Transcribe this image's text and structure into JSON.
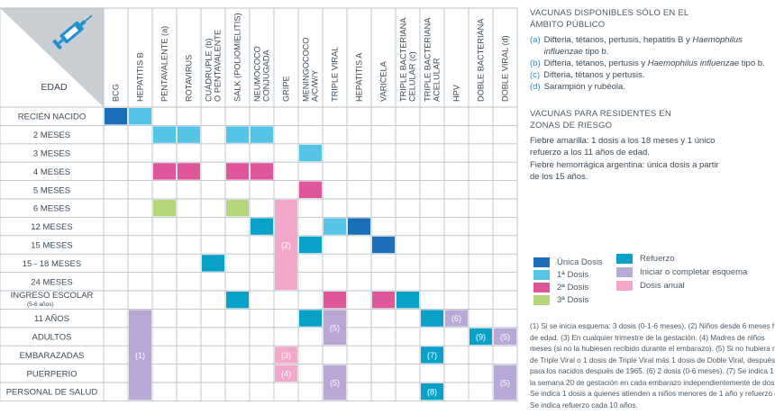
{
  "table": {
    "header_label": "EDAD",
    "columns": [
      "BCG",
      "HEPATITIS B",
      "PENTAVALENTE (a)",
      "ROTAVIRUS",
      "CUÁDRUPLE (b)\nO PENTAVALENTE",
      "SALK (POLIOMIELITIS)",
      "NEUMOCOCO\nCONJUGADA",
      "GRIPE",
      "MENINGOCOCO\nA/C/W/Y",
      "TRIPLE VIRAL",
      "HEPATITIS A",
      "VARICELA",
      "TRIPLE BACTERIANA\nCELULAR (c)",
      "TRIPLE BACTERIANA\nACELULAR",
      "HPV",
      "DOBLE BACTERIANA",
      "DOBLE VIRAL (d)"
    ],
    "rows": [
      "RECIÉN NACIDO",
      "2 MESES",
      "3 MESES",
      "4 MESES",
      "5 MESES",
      "6 MESES",
      "12 MESES",
      "15 MESES",
      "15 - 18 MESES",
      "24 MESES",
      "INGRESO ESCOLAR\n(5-6 años)",
      "11 AÑOS",
      "ADULTOS",
      "EMBARAZADAS",
      "PUERPERIO",
      "PERSONAL DE SALUD"
    ],
    "cells": [
      {
        "r": 0,
        "c": 0,
        "t": "unica"
      },
      {
        "r": 0,
        "c": 1,
        "t": "dosis1"
      },
      {
        "r": 1,
        "c": 2,
        "t": "dosis1"
      },
      {
        "r": 1,
        "c": 3,
        "t": "dosis1"
      },
      {
        "r": 1,
        "c": 5,
        "t": "dosis1"
      },
      {
        "r": 1,
        "c": 6,
        "t": "dosis1"
      },
      {
        "r": 2,
        "c": 8,
        "t": "dosis1"
      },
      {
        "r": 3,
        "c": 2,
        "t": "dosis2"
      },
      {
        "r": 3,
        "c": 3,
        "t": "dosis2"
      },
      {
        "r": 3,
        "c": 5,
        "t": "dosis2"
      },
      {
        "r": 3,
        "c": 6,
        "t": "dosis2"
      },
      {
        "r": 4,
        "c": 8,
        "t": "dosis2"
      },
      {
        "r": 5,
        "c": 2,
        "t": "dosis3"
      },
      {
        "r": 5,
        "c": 5,
        "t": "dosis3"
      },
      {
        "r": 6,
        "c": 6,
        "t": "refuerzo"
      },
      {
        "r": 6,
        "c": 9,
        "t": "dosis1"
      },
      {
        "r": 6,
        "c": 10,
        "t": "unica"
      },
      {
        "r": 7,
        "c": 8,
        "t": "refuerzo"
      },
      {
        "r": 7,
        "c": 11,
        "t": "unica"
      },
      {
        "r": 8,
        "c": 4,
        "t": "refuerzo"
      },
      {
        "r": 10,
        "c": 5,
        "t": "refuerzo"
      },
      {
        "r": 10,
        "c": 9,
        "t": "dosis2"
      },
      {
        "r": 10,
        "c": 11,
        "t": "dosis2"
      },
      {
        "r": 10,
        "c": 12,
        "t": "refuerzo"
      },
      {
        "r": 11,
        "c": 8,
        "t": "refuerzo"
      },
      {
        "r": 11,
        "c": 13,
        "t": "refuerzo"
      },
      {
        "r": 12,
        "c": 16,
        "t": "iniciar",
        "label": "(5)"
      },
      {
        "r": 13,
        "c": 13,
        "t": "refuerzo",
        "label": "(7)"
      },
      {
        "r": 15,
        "c": 13,
        "t": "refuerzo",
        "label": "(8)"
      }
    ],
    "spans": [
      {
        "r": 5,
        "c": 7,
        "rs": 5,
        "t": "anual",
        "label": "(2)"
      },
      {
        "r": 11,
        "c": 1,
        "rs": 5,
        "t": "iniciar",
        "label": "(1)"
      },
      {
        "r": 11,
        "c": 9,
        "rs": 2,
        "t": "iniciar",
        "label": "(5)"
      },
      {
        "r": 11,
        "c": 14,
        "rs": 1,
        "t": "iniciar",
        "label": "(6)"
      },
      {
        "r": 12,
        "c": 15,
        "rs": 1,
        "t": "refuerzo",
        "label": "(9)"
      },
      {
        "r": 13,
        "c": 7,
        "rs": 1,
        "t": "anual",
        "label": "(3)"
      },
      {
        "r": 14,
        "c": 7,
        "rs": 1,
        "t": "anual",
        "label": "(4)"
      },
      {
        "r": 14,
        "c": 9,
        "rs": 2,
        "t": "iniciar",
        "label": "(5)"
      },
      {
        "r": 14,
        "c": 16,
        "rs": 2,
        "t": "iniciar",
        "label": "(5)"
      }
    ]
  },
  "colors": {
    "unica": "#1b6fb8",
    "dosis1": "#55c4e6",
    "dosis2": "#e0569a",
    "dosis3": "#b5d67a",
    "refuerzo": "#0aa1c8",
    "iniciar": "#b8a8d6",
    "anual": "#f3a7c9",
    "rowhead": "#ffffff",
    "rowhead_border": "#b8c2ca",
    "header_bg": "#ffffff",
    "corner_shade": "#c9ced3",
    "icon": "#1e8fd5"
  },
  "header_icon": "syringe-icon",
  "right": {
    "public_title": "VACUNAS DISPONIBLES SÓLO EN EL\nÁMBITO PÚBLICO",
    "public_items": [
      {
        "key": "(a)",
        "text": "Difteria, tétanos, pertusis, hepatitis B y Haemophilus influenzae tipo b."
      },
      {
        "key": "(b)",
        "text": "Difteria, tétanos, pertusis y Haemophilus influenzae tipo b."
      },
      {
        "key": "(c)",
        "text": "Difteria, tétanos y pertusis."
      },
      {
        "key": "(d)",
        "text": "Sarampión y rubéola."
      }
    ],
    "risk_title": "VACUNAS PARA RESIDENTES EN\nZONAS DE RIESGO",
    "risk_text1": "Fiebre amarilla: 1 dosis a los  18 meses y 1 único\nrefuerzo a los 11 años de edad.",
    "risk_text2": "Fiebre hemorrágica argentina: única dosis a partir\nde los 15 años.",
    "legend": [
      {
        "key": "unica",
        "label": "Única Dosis"
      },
      {
        "key": "dosis1",
        "label": "1ª Dosis"
      },
      {
        "key": "dosis2",
        "label": "2ª Dosis"
      },
      {
        "key": "dosis3",
        "label": "3ª Dosis"
      },
      {
        "key": "refuerzo",
        "label": "Refuerzo"
      },
      {
        "key": "iniciar",
        "label": "Iniciar o completar esquema"
      },
      {
        "key": "anual",
        "label": "Dosis anual"
      }
    ],
    "notes": [
      "(1) Si se inicia esquema: 3 dosis (0-1-6 meses). (2) Niños desde 6 meses h",
      "de edad. (3) En cualquier trimestre de la gestación. (4) Madres de niños",
      "meses (si no la hubiesen recibido durante el embarazo). (5) Si no hubiera re",
      "de Triple Viral o 1 dosis de Triple Viral más 1 dosis de Doble Viral, después d",
      "para los nacidos después de 1965. (6) 2 dosis (0-6 meses). (7) Se indica 1 d",
      "la semana 20 de gestación en cada embarazo independientemente de dos",
      "Se indica 1 dosis a quienes atienden a niños menores de 1 año y refuerzo c",
      "Se indica refuerzo cada 10 años."
    ]
  }
}
